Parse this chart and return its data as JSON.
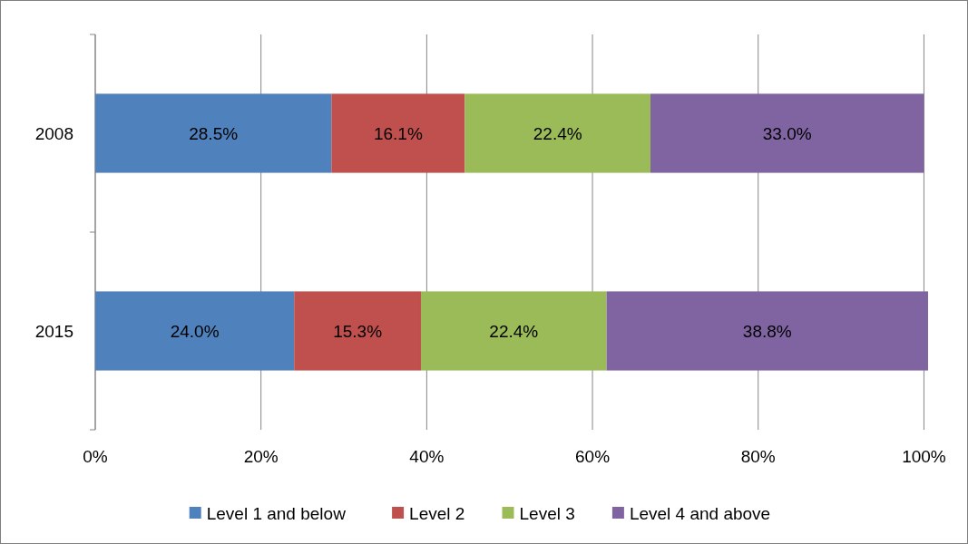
{
  "chart_data": {
    "type": "bar",
    "orientation": "horizontal",
    "stacked": true,
    "categories": [
      "2008",
      "2015"
    ],
    "series": [
      {
        "name": "Level 1 and below",
        "color": "#4f81bd",
        "values": [
          28.5,
          24.0
        ],
        "value_labels": [
          "28.5%",
          "24.0%"
        ]
      },
      {
        "name": "Level 2",
        "color": "#c0504d",
        "values": [
          16.1,
          15.3
        ],
        "value_labels": [
          "16.1%",
          "15.3%"
        ]
      },
      {
        "name": "Level 3",
        "color": "#9bbb59",
        "values": [
          22.4,
          22.4
        ],
        "value_labels": [
          "22.4%",
          "22.4%"
        ]
      },
      {
        "name": "Level 4 and above",
        "color": "#8064a2",
        "values": [
          33.0,
          38.8
        ],
        "value_labels": [
          "33.0%",
          "38.8%"
        ]
      }
    ],
    "xlim": [
      0,
      100.5
    ],
    "xticks": [
      {
        "value": 0,
        "label": "0%"
      },
      {
        "value": 20,
        "label": "20%"
      },
      {
        "value": 40,
        "label": "40%"
      },
      {
        "value": 60,
        "label": "60%"
      },
      {
        "value": 80,
        "label": "80%"
      },
      {
        "value": 100,
        "label": "100%"
      }
    ],
    "grid": "x",
    "legend": "bottom"
  }
}
